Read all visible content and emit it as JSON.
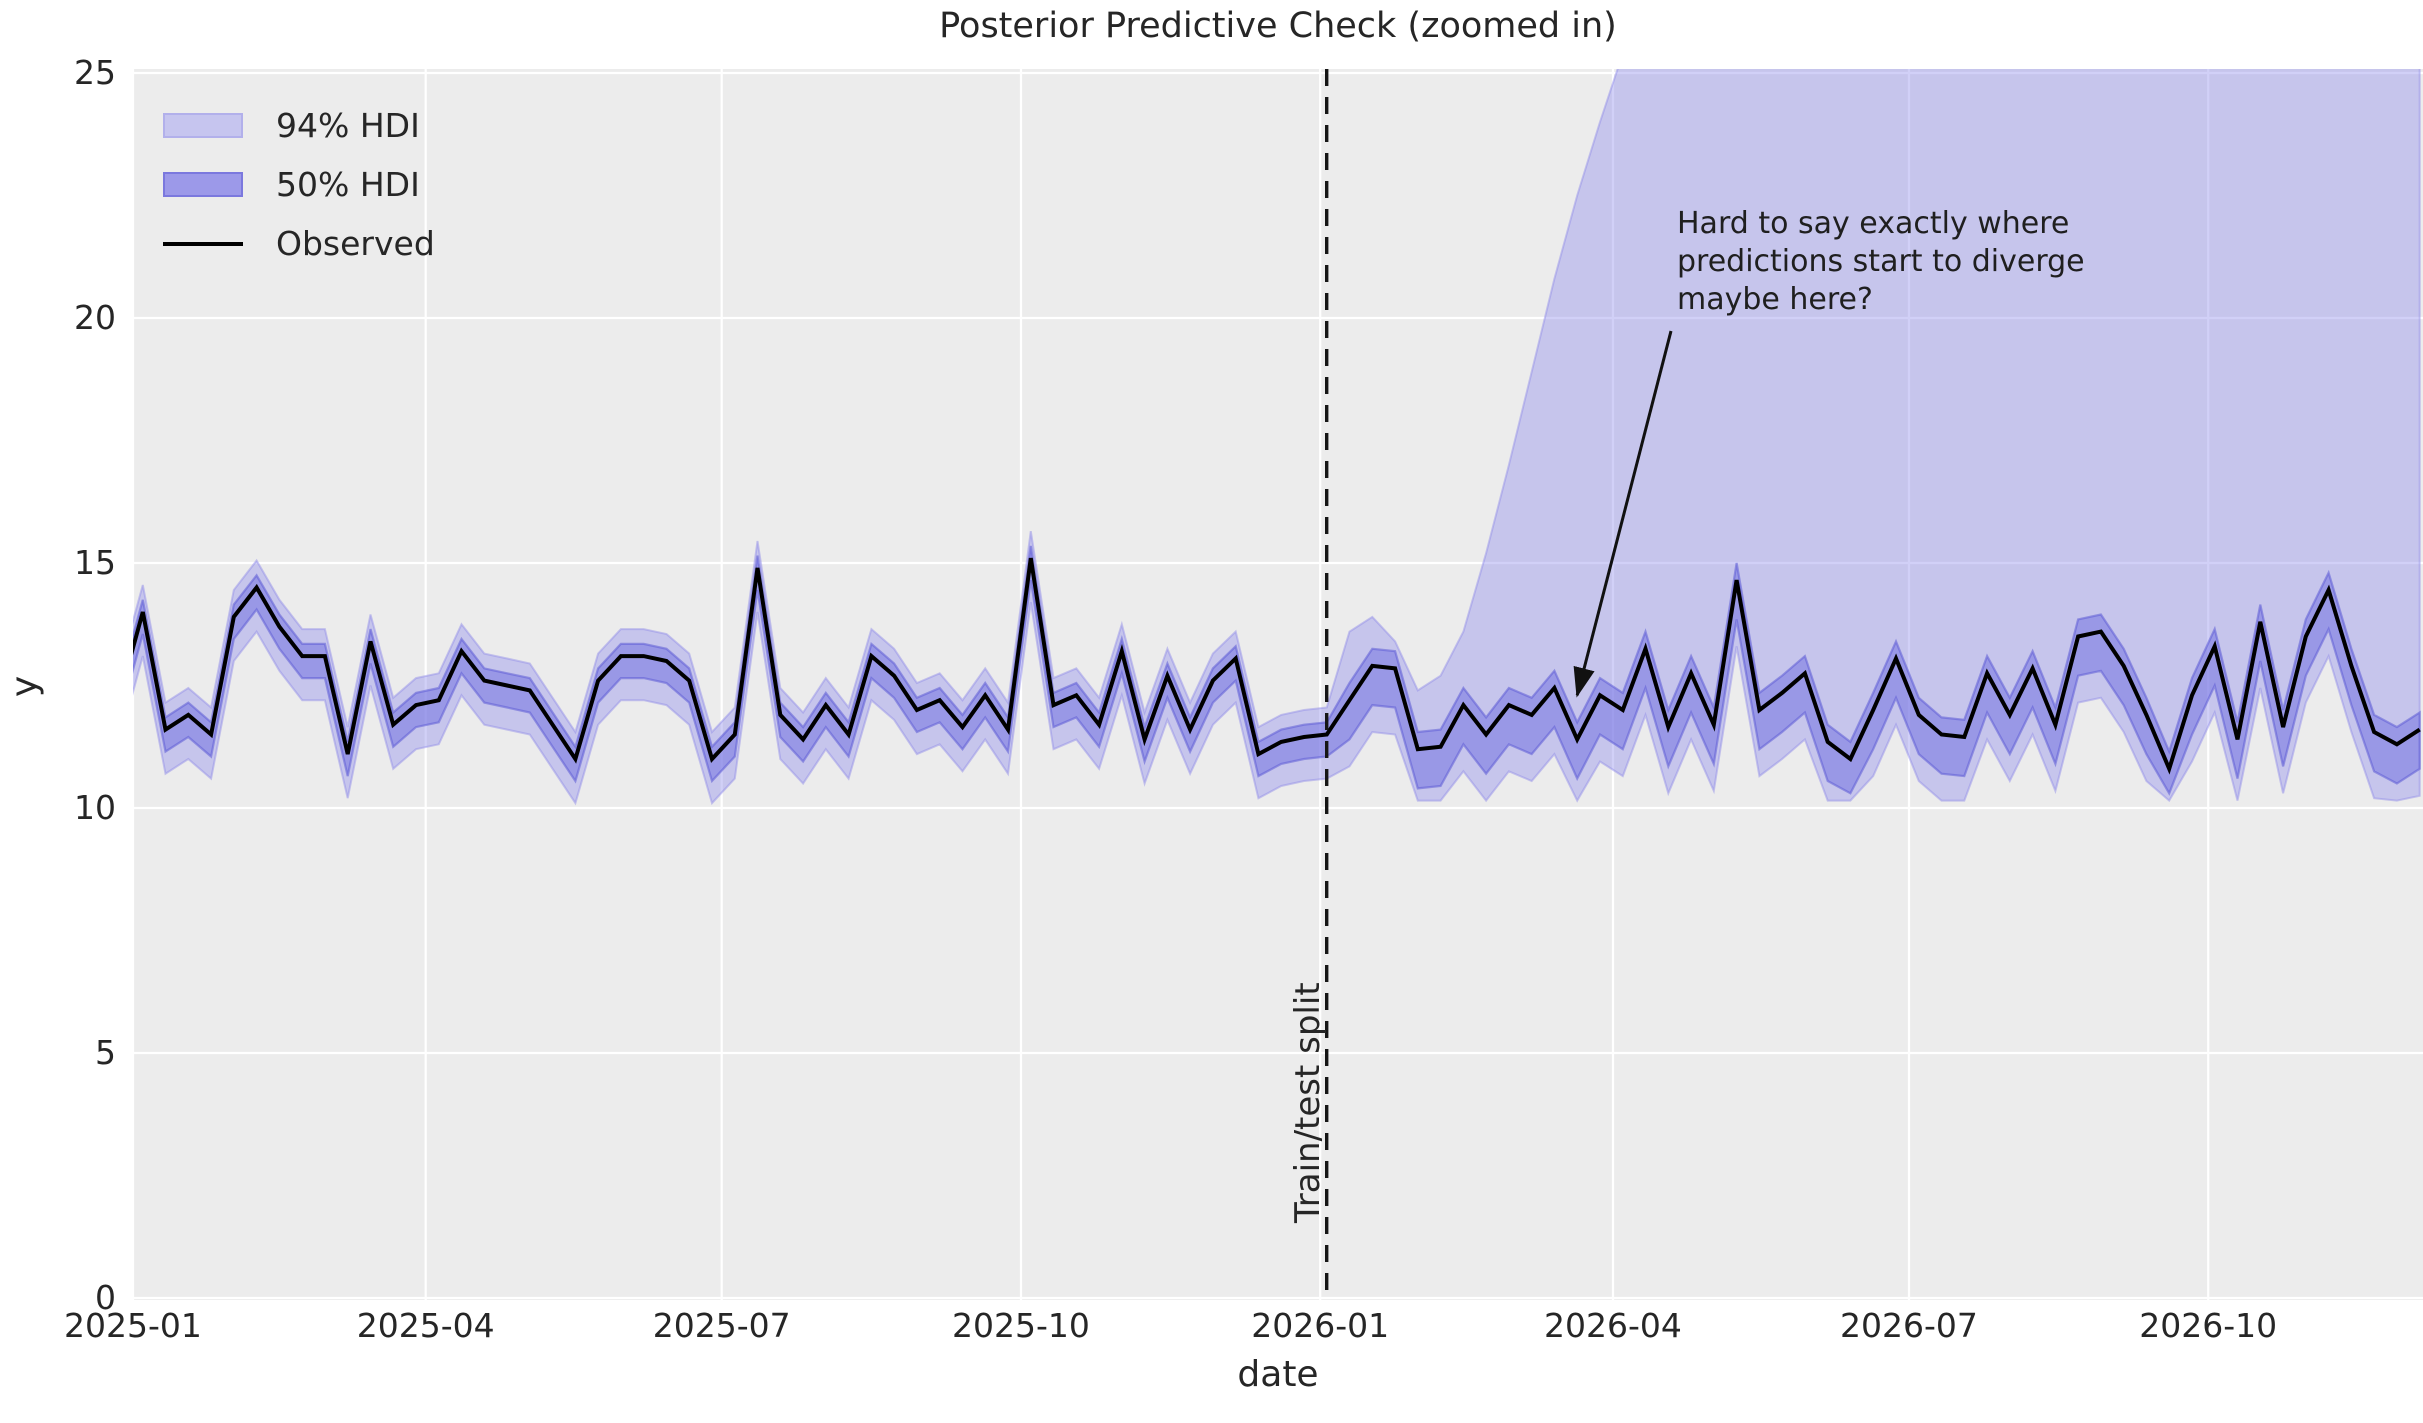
{
  "title": "Posterior Predictive Check (zoomed in)",
  "xlabel": "date",
  "ylabel": "y",
  "legend": {
    "items": [
      {
        "label": "94% HDI",
        "type": "patch",
        "swatch_fill": "#c6c5ef",
        "swatch_border": "#b2b0eb"
      },
      {
        "label": "50% HDI",
        "type": "patch",
        "swatch_fill": "#9c99e9",
        "swatch_border": "#7b78de"
      },
      {
        "label": "Observed",
        "type": "line",
        "line_color": "#000000"
      }
    ]
  },
  "annotation": {
    "lines": [
      "Hard to say exactly where",
      "predictions start to diverge",
      "maybe here?"
    ],
    "point": {
      "date": "2026-03-21",
      "y": 12.3
    }
  },
  "split": {
    "label": "Train/test split",
    "date": "2026-01-03"
  },
  "colors": {
    "figure_bg": "#ffffff",
    "plot_bg": "#ececec",
    "grid": "#ffffff",
    "hdi94_fill": "#9a97ee",
    "hdi94_edge": "#8d8ae8",
    "hdi50_fill": "#7572e2",
    "hdi50_edge": "#5f5cd6",
    "observed_line": "#000000",
    "split_line": "#161616",
    "text": "#262626"
  },
  "chart_data": {
    "type": "line",
    "title": "Posterior Predictive Check (zoomed in)",
    "xlabel": "date",
    "ylabel": "y",
    "grid": true,
    "legend_position": "upper left",
    "x_start": "2024-12-28",
    "x_step_days": 7,
    "x_ticks": [
      "2025-01",
      "2025-04",
      "2025-07",
      "2025-10",
      "2026-01",
      "2026-04",
      "2026-07",
      "2026-10"
    ],
    "y_ticks": [
      0,
      5,
      10,
      15,
      20,
      25
    ],
    "ylim": [
      -0.3,
      25.1
    ],
    "series": [
      {
        "name": "Observed",
        "values": [
          12.3,
          14.0,
          11.6,
          11.9,
          11.5,
          13.9,
          14.5,
          13.7,
          13.1,
          13.1,
          11.1,
          13.4,
          11.7,
          12.1,
          12.2,
          13.2,
          12.6,
          12.5,
          12.4,
          11.7,
          11.0,
          12.6,
          13.1,
          13.1,
          13.0,
          12.6,
          11.0,
          11.5,
          14.9,
          11.9,
          11.4,
          12.1,
          11.5,
          13.1,
          12.7,
          12.0,
          12.2,
          11.65,
          12.3,
          11.6,
          15.1,
          12.1,
          12.3,
          11.7,
          13.2,
          11.4,
          12.7,
          11.6,
          12.6,
          13.05,
          11.1,
          11.35,
          11.45,
          11.5,
          12.2,
          12.9,
          12.85,
          11.2,
          11.25,
          12.1,
          11.5,
          12.1,
          11.9,
          12.45,
          11.4,
          12.3,
          12.0,
          13.25,
          11.65,
          12.75,
          11.7,
          14.65,
          12.0,
          12.35,
          12.75,
          11.35,
          11.0,
          12.0,
          13.05,
          11.9,
          11.5,
          11.45,
          12.75,
          11.9,
          12.85,
          11.7,
          13.5,
          13.6,
          12.9,
          11.9,
          10.8,
          12.3,
          13.3,
          11.4,
          13.8,
          11.65,
          13.5,
          14.45,
          12.9,
          11.55,
          11.3,
          11.6
        ]
      },
      {
        "name": "94% HDI upper",
        "values": [
          12.85,
          14.55,
          12.15,
          12.45,
          12.05,
          14.45,
          15.05,
          14.25,
          13.65,
          13.65,
          11.65,
          13.95,
          12.25,
          12.65,
          12.75,
          13.75,
          13.15,
          13.05,
          12.95,
          12.25,
          11.55,
          13.15,
          13.65,
          13.65,
          13.55,
          13.15,
          11.55,
          12.05,
          15.45,
          12.45,
          11.95,
          12.65,
          12.05,
          13.65,
          13.25,
          12.55,
          12.75,
          12.2,
          12.85,
          12.15,
          15.65,
          12.65,
          12.85,
          12.25,
          13.75,
          11.95,
          13.25,
          12.15,
          13.15,
          13.6,
          11.65,
          11.9,
          12.0,
          12.05,
          13.6,
          13.9,
          13.4,
          12.4,
          12.7,
          13.6,
          15.2,
          17.0,
          18.9,
          20.8,
          22.5,
          24.0,
          25.4,
          26.3,
          26.5,
          26.5,
          26.5,
          26.5,
          26.5,
          26.5,
          26.5,
          26.5,
          26.5,
          26.5,
          26.5,
          26.5,
          26.5,
          26.5,
          26.5,
          26.5,
          26.5,
          26.5,
          26.5,
          26.5,
          26.5,
          26.5,
          26.5,
          26.5,
          26.5,
          26.5,
          26.5,
          26.5,
          26.5,
          26.5,
          26.5,
          26.5,
          26.5,
          26.5
        ]
      },
      {
        "name": "94% HDI lower",
        "values": [
          11.4,
          13.1,
          10.7,
          11.0,
          10.6,
          13.0,
          13.6,
          12.8,
          12.2,
          12.2,
          10.2,
          12.5,
          10.8,
          11.2,
          11.3,
          12.3,
          11.7,
          11.6,
          11.5,
          10.8,
          10.1,
          11.7,
          12.2,
          12.2,
          12.1,
          11.7,
          10.1,
          10.6,
          14.0,
          11.0,
          10.5,
          11.2,
          10.6,
          12.2,
          11.8,
          11.1,
          11.3,
          10.75,
          11.4,
          10.7,
          14.2,
          11.2,
          11.4,
          10.8,
          12.3,
          10.5,
          11.8,
          10.7,
          11.7,
          12.15,
          10.2,
          10.45,
          10.55,
          10.6,
          10.85,
          11.55,
          11.5,
          10.15,
          10.15,
          10.75,
          10.15,
          10.75,
          10.55,
          11.1,
          10.15,
          10.95,
          10.65,
          11.9,
          10.3,
          11.4,
          10.35,
          13.3,
          10.65,
          11.0,
          11.4,
          10.15,
          10.15,
          10.65,
          11.7,
          10.55,
          10.15,
          10.15,
          11.4,
          10.55,
          11.5,
          10.35,
          12.15,
          12.25,
          11.55,
          10.55,
          10.15,
          10.95,
          11.95,
          10.15,
          12.45,
          10.3,
          12.15,
          13.1,
          11.55,
          10.2,
          10.15,
          10.25
        ]
      },
      {
        "name": "50% HDI upper",
        "values": [
          12.55,
          14.25,
          11.85,
          12.15,
          11.75,
          14.15,
          14.75,
          13.95,
          13.35,
          13.35,
          11.35,
          13.65,
          11.95,
          12.35,
          12.45,
          13.45,
          12.85,
          12.75,
          12.65,
          11.95,
          11.25,
          12.85,
          13.35,
          13.35,
          13.25,
          12.85,
          11.25,
          11.75,
          15.15,
          12.15,
          11.65,
          12.35,
          11.75,
          13.35,
          12.95,
          12.25,
          12.45,
          11.9,
          12.55,
          11.85,
          15.35,
          12.35,
          12.55,
          11.95,
          13.45,
          11.65,
          12.95,
          11.85,
          12.85,
          13.3,
          11.35,
          11.6,
          11.7,
          11.75,
          12.55,
          13.25,
          13.2,
          11.55,
          11.6,
          12.45,
          11.85,
          12.45,
          12.25,
          12.8,
          11.75,
          12.65,
          12.35,
          13.6,
          12.0,
          13.1,
          12.05,
          15.0,
          12.35,
          12.7,
          13.1,
          11.7,
          11.35,
          12.35,
          13.4,
          12.25,
          11.85,
          11.8,
          13.1,
          12.25,
          13.2,
          12.05,
          13.85,
          13.95,
          13.25,
          12.25,
          11.15,
          12.65,
          13.65,
          11.75,
          14.15,
          12.0,
          13.85,
          14.8,
          13.25,
          11.9,
          11.65,
          11.95
        ]
      },
      {
        "name": "50% HDI lower",
        "values": [
          11.85,
          13.55,
          11.15,
          11.45,
          11.05,
          13.45,
          14.05,
          13.25,
          12.65,
          12.65,
          10.65,
          12.95,
          11.25,
          11.65,
          11.75,
          12.75,
          12.15,
          12.05,
          11.95,
          11.25,
          10.55,
          12.15,
          12.65,
          12.65,
          12.55,
          12.15,
          10.55,
          11.05,
          14.45,
          11.45,
          10.95,
          11.65,
          11.05,
          12.65,
          12.25,
          11.55,
          11.75,
          11.2,
          11.85,
          11.15,
          14.65,
          11.65,
          11.85,
          11.25,
          12.75,
          10.95,
          12.25,
          11.15,
          12.15,
          12.6,
          10.65,
          10.9,
          11.0,
          11.05,
          11.4,
          12.1,
          12.05,
          10.4,
          10.45,
          11.3,
          10.7,
          11.3,
          11.1,
          11.65,
          10.6,
          11.5,
          11.2,
          12.45,
          10.85,
          11.95,
          10.9,
          13.85,
          11.2,
          11.55,
          11.95,
          10.55,
          10.3,
          11.2,
          12.25,
          11.1,
          10.7,
          10.65,
          11.95,
          11.1,
          12.05,
          10.9,
          12.7,
          12.8,
          12.1,
          11.1,
          10.3,
          11.5,
          12.5,
          10.6,
          13.0,
          10.85,
          12.7,
          13.65,
          12.1,
          10.75,
          10.5,
          10.8
        ]
      }
    ]
  }
}
